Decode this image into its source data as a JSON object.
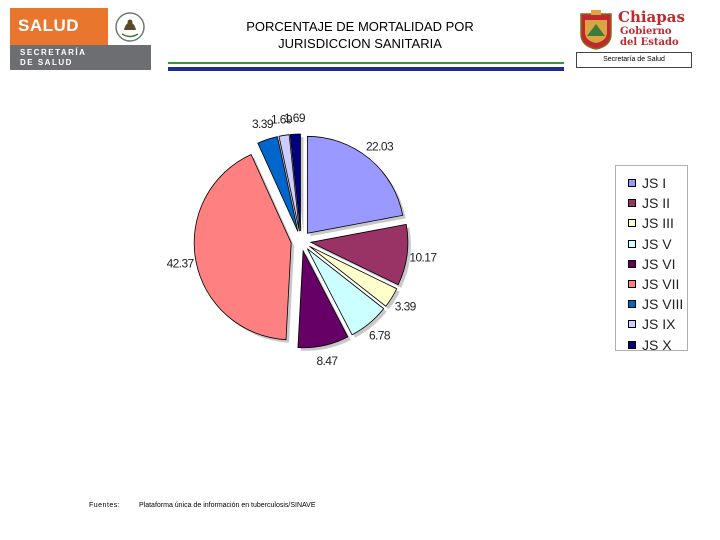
{
  "header": {
    "title_line1": "PORCENTAJE DE MORTALIDAD POR",
    "title_line2": "JURISDICCION SANITARIA"
  },
  "logo_left": {
    "brand": "SALUD",
    "line1": "SECRETARÍA",
    "line2": "DE SALUD"
  },
  "logo_right": {
    "line1": "Chiapas",
    "line2": "Gobierno",
    "line3": "del Estado",
    "caption": "Secretaría de Salud"
  },
  "footer": {
    "source_label": "Fuentes:",
    "source_text": "Plataforma única de información en tuberculosis/SINAVE"
  },
  "chart_data": {
    "type": "pie",
    "title": "PORCENTAJE DE MORTALIDAD POR JURISDICCION SANITARIA",
    "legend_position": "right",
    "categories": [
      "JS I",
      "JS II",
      "JS III",
      "JS V",
      "JS VI",
      "JS VII",
      "JS VIII",
      "JS IX",
      "JS X"
    ],
    "values": [
      22.03,
      10.17,
      3.39,
      6.78,
      8.47,
      42.37,
      3.39,
      1.69,
      1.69
    ],
    "value_labels": [
      "22.03",
      "10.17",
      "3.39",
      "6.78",
      "8.47",
      "42.37",
      "3.39",
      "1.69",
      "1.69"
    ],
    "colors": [
      "#9999ff",
      "#993366",
      "#ffffcc",
      "#ccffff",
      "#660066",
      "#ff8080",
      "#0066cc",
      "#ccccff",
      "#000080"
    ]
  }
}
